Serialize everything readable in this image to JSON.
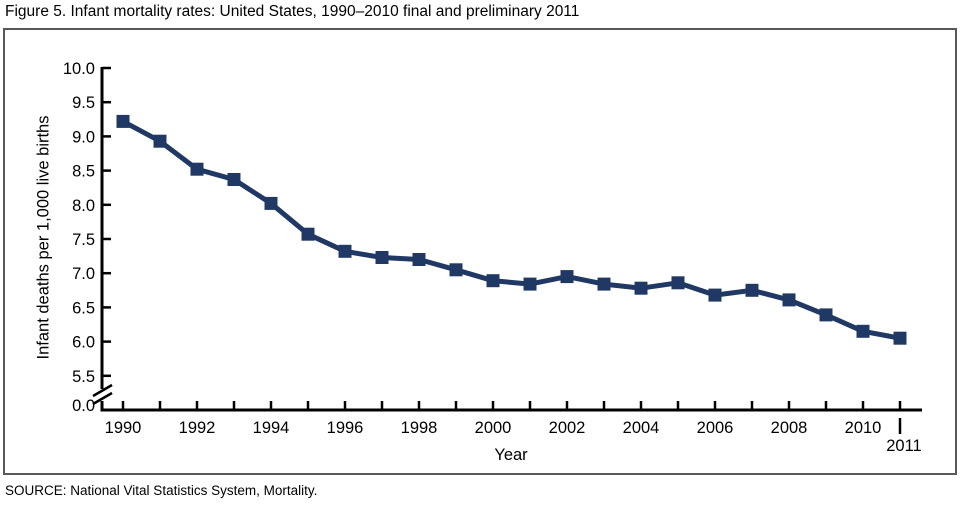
{
  "source": "SOURCE: National Vital Statistics System, Mortality.",
  "chart_data": {
    "type": "line",
    "title": "Figure 5. Infant mortality rates: United States, 1990–2010 final and preliminary 2011",
    "xlabel": "Year",
    "ylabel": "Infant deaths per 1,000 live births",
    "x": [
      1990,
      1991,
      1992,
      1993,
      1994,
      1995,
      1996,
      1997,
      1998,
      1999,
      2000,
      2001,
      2002,
      2003,
      2004,
      2005,
      2006,
      2007,
      2008,
      2009,
      2010,
      2011
    ],
    "series": [
      {
        "name": "Infant deaths per 1,000 live births",
        "values": [
          9.22,
          8.93,
          8.52,
          8.37,
          8.02,
          7.57,
          7.32,
          7.23,
          7.2,
          7.05,
          6.89,
          6.84,
          6.95,
          6.84,
          6.78,
          6.86,
          6.68,
          6.75,
          6.61,
          6.39,
          6.15,
          6.05
        ]
      }
    ],
    "ylim": [
      5.5,
      10.0
    ],
    "y_ticks": [
      5.5,
      6.0,
      6.5,
      7.0,
      7.5,
      8.0,
      8.5,
      9.0,
      9.5,
      10.0
    ],
    "y_tick_labels": [
      "5.5",
      "6.0",
      "6.5",
      "7.0",
      "7.5",
      "8.0",
      "8.5",
      "9.0",
      "9.5",
      "10.0"
    ],
    "y_origin_label": "0.0",
    "axis_break_at_origin": true,
    "x_tick_years_labeled": [
      1990,
      1992,
      1994,
      1996,
      1998,
      2000,
      2002,
      2004,
      2006,
      2008,
      2010
    ],
    "x_last_label": "2011",
    "grid": false,
    "legend": "none",
    "line_color": "#1f3864",
    "marker": "square",
    "axis_color": "#000000"
  }
}
